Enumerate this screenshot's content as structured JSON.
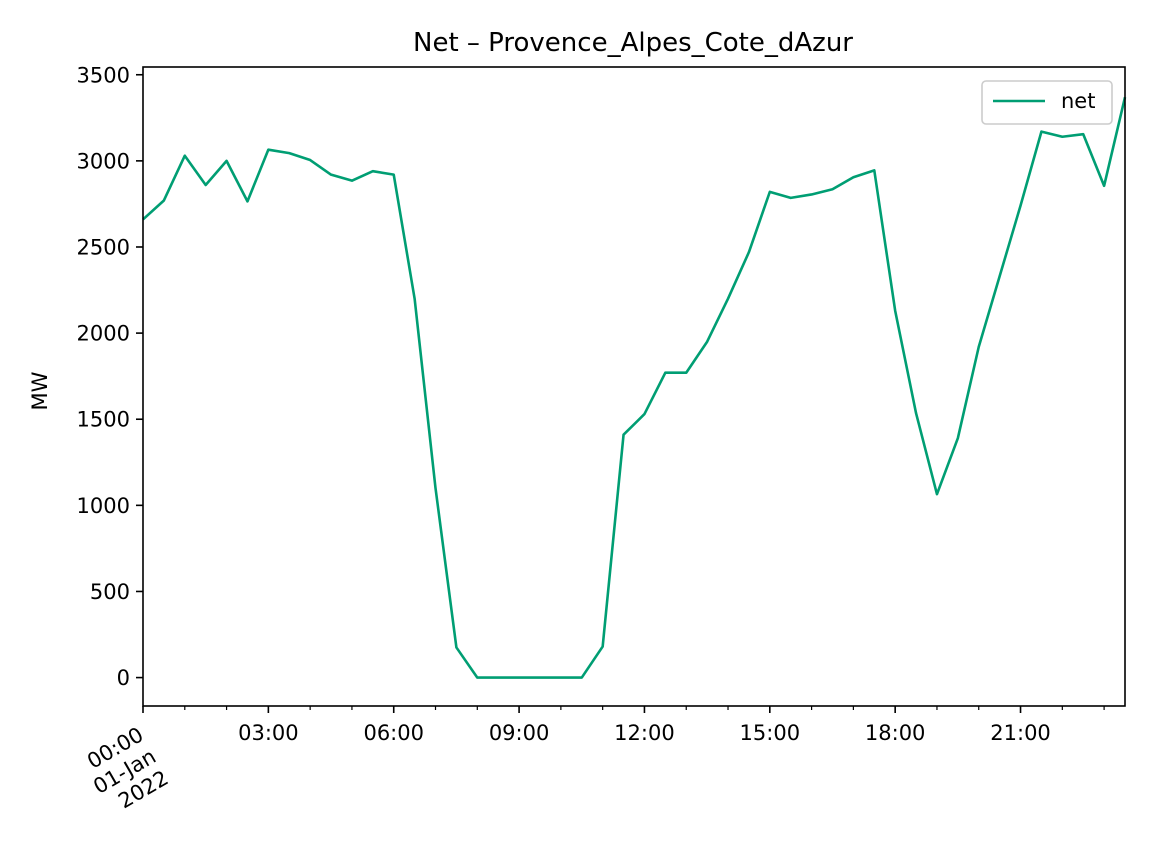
{
  "chart_data": {
    "type": "line",
    "title": "Net – Provence_Alpes_Cote_dAzur",
    "xlabel": "",
    "ylabel": "MW",
    "x": [
      "00:00",
      "00:30",
      "01:00",
      "01:30",
      "02:00",
      "02:30",
      "03:00",
      "03:30",
      "04:00",
      "04:30",
      "05:00",
      "05:30",
      "06:00",
      "06:30",
      "07:00",
      "07:30",
      "08:00",
      "08:30",
      "09:00",
      "09:30",
      "10:00",
      "10:30",
      "11:00",
      "11:30",
      "12:00",
      "12:30",
      "13:00",
      "13:30",
      "14:00",
      "14:30",
      "15:00",
      "15:30",
      "16:00",
      "16:30",
      "17:00",
      "17:30",
      "18:00",
      "18:30",
      "19:00",
      "19:30",
      "20:00",
      "20:30",
      "21:00",
      "21:30",
      "22:00",
      "22:30",
      "23:00",
      "23:30"
    ],
    "series": [
      {
        "name": "net",
        "color": "#009E73",
        "values": [
          2660,
          2770,
          3030,
          2860,
          3000,
          2765,
          3065,
          3045,
          3005,
          2920,
          2885,
          2940,
          2920,
          2200,
          1100,
          175,
          0,
          0,
          0,
          0,
          0,
          0,
          180,
          1410,
          1530,
          1770,
          1770,
          1950,
          2200,
          2470,
          2820,
          2785,
          2805,
          2835,
          2905,
          2945,
          2130,
          1535,
          1065,
          1390,
          1920,
          2330,
          2740,
          3170,
          3140,
          3155,
          2855,
          3370
        ]
      }
    ],
    "x_ticks": [
      "00:00\n01-Jan\n2022",
      "03:00",
      "06:00",
      "09:00",
      "12:00",
      "15:00",
      "18:00",
      "21:00"
    ],
    "x_tick_labels": {
      "first_line1": "00:00",
      "first_line2": "01-Jan",
      "first_line3": "2022",
      "t0300": "03:00",
      "t0600": "06:00",
      "t0900": "09:00",
      "t1200": "12:00",
      "t1500": "15:00",
      "t1800": "18:00",
      "t2100": "21:00"
    },
    "y_ticks": [
      0,
      500,
      1000,
      1500,
      2000,
      2500,
      3000,
      3500
    ],
    "ylim": [
      -165,
      3545
    ],
    "xlim_hours": [
      0,
      23.5
    ],
    "grid": false,
    "legend_position": "upper right"
  }
}
